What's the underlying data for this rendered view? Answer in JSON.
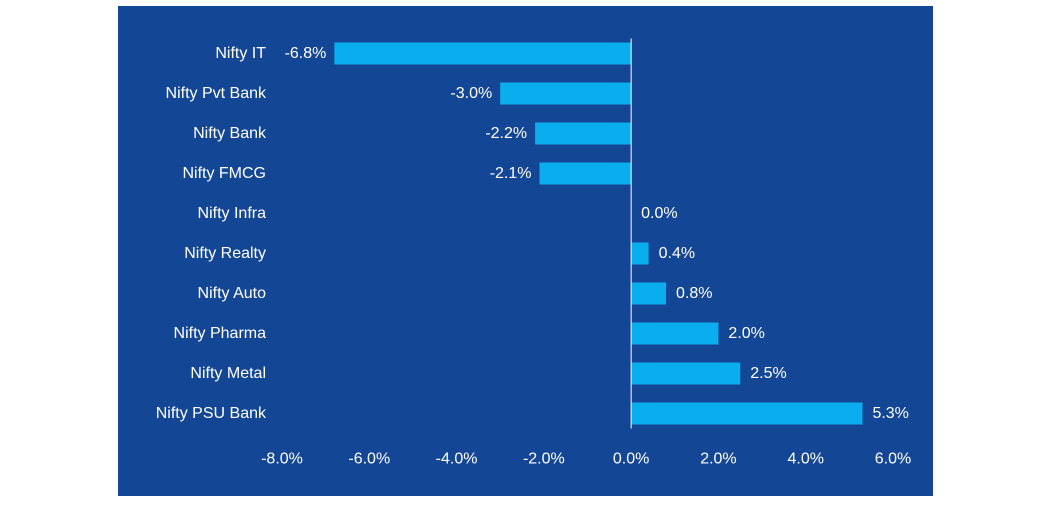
{
  "chart_data": {
    "type": "bar",
    "orientation": "horizontal",
    "title": "",
    "xlabel": "",
    "ylabel": "",
    "categories": [
      "Nifty IT",
      "Nifty Pvt Bank",
      "Nifty Bank",
      "Nifty FMCG",
      "Nifty Infra",
      "Nifty Realty",
      "Nifty Auto",
      "Nifty Pharma",
      "Nifty Metal",
      "Nifty PSU Bank"
    ],
    "values": [
      -6.8,
      -3.0,
      -2.2,
      -2.1,
      0.0,
      0.4,
      0.8,
      2.0,
      2.5,
      5.3
    ],
    "value_labels": [
      "-6.8%",
      "-3.0%",
      "-2.2%",
      "-2.1%",
      "0.0%",
      "0.4%",
      "0.8%",
      "2.0%",
      "2.5%",
      "5.3%"
    ],
    "xlim": [
      -8,
      6
    ],
    "x_ticks": [
      -8,
      -6,
      -4,
      -2,
      0,
      2,
      4,
      6
    ],
    "x_tick_labels": [
      "-8.0%",
      "-6.0%",
      "-4.0%",
      "-2.0%",
      "0.0%",
      "2.0%",
      "4.0%",
      "6.0%"
    ],
    "grid": false,
    "legend": "none",
    "colors": {
      "background": "#144696",
      "bar": "#0AAEEF",
      "text": "#ffffff",
      "axis": "#ffffff"
    }
  }
}
